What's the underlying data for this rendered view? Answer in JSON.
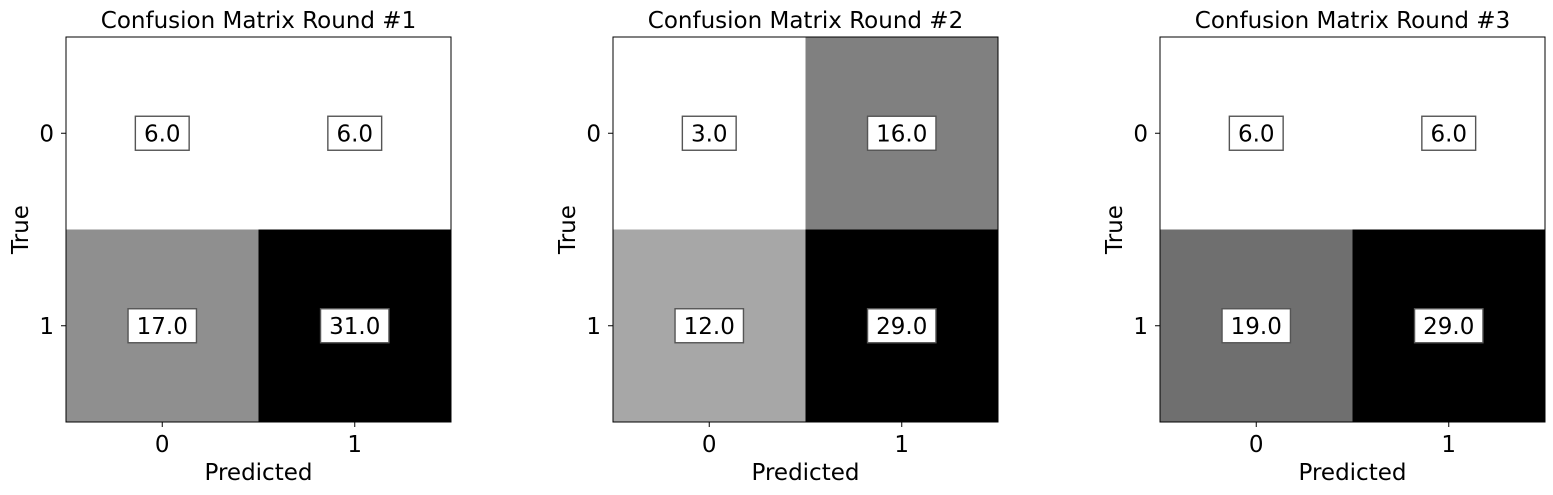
{
  "chart_data": [
    {
      "type": "heatmap",
      "title": "Confusion Matrix Round #1",
      "xlabel": "Predicted",
      "ylabel": "True",
      "x_categories": [
        "0",
        "1"
      ],
      "y_categories": [
        "0",
        "1"
      ],
      "values": [
        [
          6.0,
          6.0
        ],
        [
          17.0,
          31.0
        ]
      ],
      "cell_labels": [
        [
          "6.0",
          "6.0"
        ],
        [
          "17.0",
          "31.0"
        ]
      ],
      "colormap": "grayscale, white (low) to black (high)"
    },
    {
      "type": "heatmap",
      "title": "Confusion Matrix Round #2",
      "xlabel": "Predicted",
      "ylabel": "True",
      "x_categories": [
        "0",
        "1"
      ],
      "y_categories": [
        "0",
        "1"
      ],
      "values": [
        [
          3.0,
          16.0
        ],
        [
          12.0,
          29.0
        ]
      ],
      "cell_labels": [
        [
          "3.0",
          "16.0"
        ],
        [
          "12.0",
          "29.0"
        ]
      ],
      "colormap": "grayscale, white (low) to black (high)"
    },
    {
      "type": "heatmap",
      "title": "Confusion Matrix Round #3",
      "xlabel": "Predicted",
      "ylabel": "True",
      "x_categories": [
        "0",
        "1"
      ],
      "y_categories": [
        "0",
        "1"
      ],
      "values": [
        [
          6.0,
          6.0
        ],
        [
          19.0,
          29.0
        ]
      ],
      "cell_labels": [
        [
          "6.0",
          "6.0"
        ],
        [
          "19.0",
          "29.0"
        ]
      ],
      "colormap": "grayscale, white (low) to black (high)"
    }
  ]
}
